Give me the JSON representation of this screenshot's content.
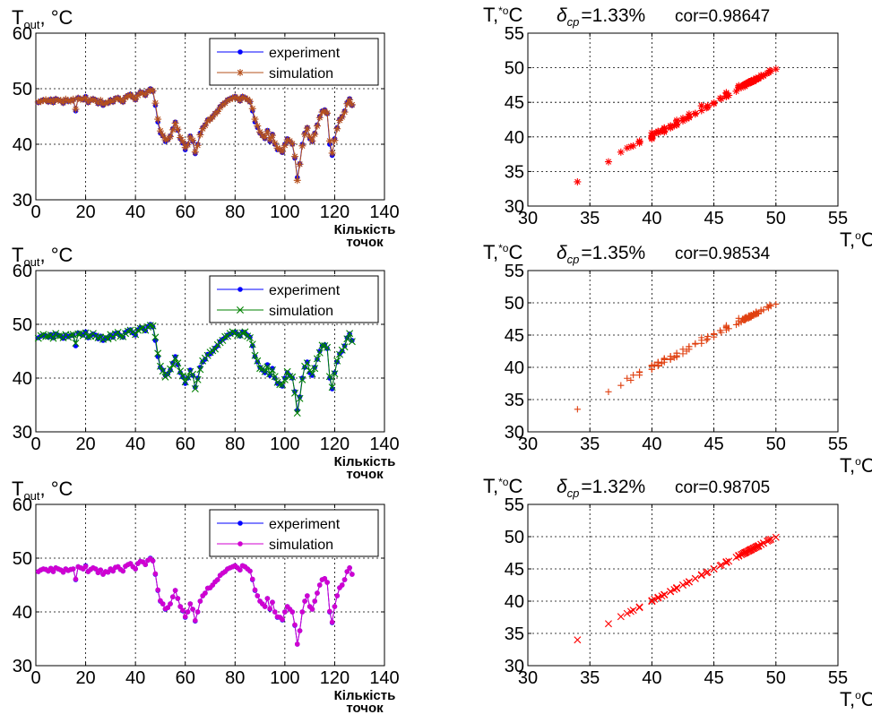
{
  "chart_data": [
    {
      "id": "p1",
      "type": "line",
      "y_label": "T",
      "y_label_sub": "out",
      "y_label_unit": ", °C",
      "x_label": [
        "Кількість",
        "точок"
      ],
      "xlim": [
        0,
        140
      ],
      "ylim": [
        30,
        60
      ],
      "xticks": [
        0,
        20,
        40,
        60,
        80,
        100,
        120,
        140
      ],
      "yticks": [
        30,
        40,
        50,
        60
      ],
      "grid": true,
      "legend_position": "top-right",
      "legend": [
        "experiment",
        "simulation"
      ],
      "series": [
        {
          "name": "experiment",
          "color": "#0000ff",
          "marker": "circle",
          "values": "experiment"
        },
        {
          "name": "simulation",
          "color": "#b5501c",
          "marker": "star",
          "values": "sim1"
        }
      ]
    },
    {
      "id": "s1",
      "type": "scatter",
      "title_prefix": "T,",
      "title_sup": "*o",
      "title_suffix": "C",
      "delta_text": "δ",
      "delta_sub": "ср",
      "delta_value": "=1.33%",
      "cor_text": "cor=0.98647",
      "x_label": "T,",
      "x_label_sup": "o",
      "x_label_unit": "C",
      "xlim": [
        30,
        55
      ],
      "ylim": [
        30,
        55
      ],
      "xticks": [
        30,
        35,
        40,
        45,
        50,
        55
      ],
      "yticks": [
        30,
        35,
        40,
        45,
        50,
        55
      ],
      "grid": true,
      "marker": "star",
      "color": "#ff0000",
      "series_pair": [
        "experiment",
        "sim1"
      ]
    },
    {
      "id": "p2",
      "type": "line",
      "y_label": "T",
      "y_label_sub": "out",
      "y_label_unit": ", °C",
      "x_label": [
        "Кількість",
        "точок"
      ],
      "xlim": [
        0,
        140
      ],
      "ylim": [
        30,
        60
      ],
      "xticks": [
        0,
        20,
        40,
        60,
        80,
        100,
        120,
        140
      ],
      "yticks": [
        30,
        40,
        50,
        60
      ],
      "grid": true,
      "legend_position": "top-right",
      "legend": [
        "experiment",
        "simulation"
      ],
      "series": [
        {
          "name": "experiment",
          "color": "#0000ff",
          "marker": "circle",
          "values": "experiment"
        },
        {
          "name": "simulation",
          "color": "#008000",
          "marker": "x",
          "values": "sim2"
        }
      ]
    },
    {
      "id": "s2",
      "type": "scatter",
      "title_prefix": "T,",
      "title_sup": "*o",
      "title_suffix": "C",
      "delta_text": "δ",
      "delta_sub": "ср",
      "delta_value": "=1.35%",
      "cor_text": "cor=0.98534",
      "x_label": "T,",
      "x_label_sup": "o",
      "x_label_unit": "C",
      "xlim": [
        30,
        55
      ],
      "ylim": [
        30,
        55
      ],
      "xticks": [
        30,
        35,
        40,
        45,
        50,
        55
      ],
      "yticks": [
        30,
        35,
        40,
        45,
        50,
        55
      ],
      "grid": true,
      "marker": "plus",
      "color": "#e04010",
      "series_pair": [
        "experiment",
        "sim2"
      ]
    },
    {
      "id": "p3",
      "type": "line",
      "y_label": "T",
      "y_label_sub": "out",
      "y_label_unit": ", °C",
      "x_label": [
        "Кількість",
        "точок"
      ],
      "xlim": [
        0,
        140
      ],
      "ylim": [
        30,
        60
      ],
      "xticks": [
        0,
        20,
        40,
        60,
        80,
        100,
        120,
        140
      ],
      "yticks": [
        30,
        40,
        50,
        60
      ],
      "grid": true,
      "legend_position": "top-right",
      "legend": [
        "experiment",
        "simulation"
      ],
      "series": [
        {
          "name": "experiment",
          "color": "#0000ff",
          "marker": "circle",
          "values": "experiment"
        },
        {
          "name": "simulation",
          "color": "#d000d0",
          "marker": "circle",
          "values": "sim3"
        }
      ]
    },
    {
      "id": "s3",
      "type": "scatter",
      "title_prefix": "T,",
      "title_sup": "*o",
      "title_suffix": "C",
      "delta_text": "δ",
      "delta_sub": "ср",
      "delta_value": "=1.32%",
      "cor_text": "cor=0.98705",
      "x_label": "T,",
      "x_label_sup": "o",
      "x_label_unit": "C",
      "xlim": [
        30,
        55
      ],
      "ylim": [
        30,
        55
      ],
      "xticks": [
        30,
        35,
        40,
        45,
        50,
        55
      ],
      "yticks": [
        30,
        35,
        40,
        45,
        50,
        55
      ],
      "grid": true,
      "marker": "x",
      "color": "#ff0000",
      "series_pair": [
        "experiment",
        "sim3"
      ]
    }
  ],
  "series_values": {
    "experiment": [
      47.5,
      47.8,
      48.0,
      47.9,
      47.6,
      48.1,
      47.5,
      48.2,
      48.0,
      47.8,
      47.4,
      48.0,
      47.7,
      47.9,
      48.0,
      46.0,
      48.4,
      48.2,
      48.0,
      48.6,
      47.5,
      47.9,
      48.2,
      48.0,
      47.3,
      47.8,
      47.0,
      47.5,
      47.4,
      48.0,
      47.6,
      48.3,
      48.4,
      47.9,
      47.6,
      48.5,
      48.8,
      49.0,
      48.4,
      48.0,
      49.0,
      49.4,
      49.3,
      48.8,
      49.6,
      50.0,
      49.5,
      47.0,
      44.0,
      42.0,
      41.5,
      40.5,
      40.8,
      41.5,
      42.8,
      44.0,
      42.5,
      41.0,
      40.2,
      39.0,
      40.0,
      41.5,
      40.5,
      38.3,
      40.0,
      42.0,
      43.0,
      43.5,
      44.4,
      44.5,
      45.0,
      45.6,
      46.0,
      46.8,
      47.2,
      47.5,
      48.0,
      48.2,
      48.4,
      48.6,
      48.2,
      47.8,
      48.6,
      48.4,
      48.0,
      47.6,
      46.0,
      44.0,
      43.0,
      42.0,
      41.5,
      41.0,
      42.5,
      40.5,
      41.8,
      40.0,
      39.0,
      39.0,
      38.5,
      40.0,
      41.0,
      40.5,
      40.0,
      37.5,
      34.0,
      36.5,
      40.0,
      42.0,
      43.0,
      41.0,
      40.5,
      42.0,
      43.5,
      45.0,
      46.0,
      46.2,
      45.5,
      40.0,
      38.0,
      41.0,
      43.0,
      44.5,
      45.0,
      46.0,
      47.5,
      48.2,
      47.0
    ],
    "sim1": [
      47.6,
      47.7,
      47.9,
      48.0,
      47.7,
      48.0,
      47.6,
      48.1,
      47.9,
      47.9,
      47.5,
      48.1,
      47.8,
      47.8,
      48.1,
      46.3,
      48.3,
      48.1,
      48.1,
      48.4,
      47.6,
      48.0,
      48.1,
      47.9,
      47.4,
      47.9,
      47.2,
      47.4,
      47.5,
      47.9,
      47.7,
      48.2,
      48.3,
      48.0,
      47.7,
      48.4,
      48.7,
      48.9,
      48.5,
      48.1,
      48.8,
      49.3,
      49.2,
      48.9,
      49.5,
      49.8,
      49.6,
      47.4,
      44.5,
      42.4,
      41.6,
      40.8,
      40.9,
      41.4,
      42.6,
      43.8,
      42.7,
      41.2,
      40.5,
      39.4,
      39.9,
      41.3,
      40.7,
      38.6,
      39.8,
      41.7,
      42.8,
      43.4,
      44.2,
      44.5,
      44.9,
      45.5,
      45.9,
      46.6,
      47.1,
      47.4,
      47.9,
      48.1,
      48.3,
      48.5,
      48.3,
      47.9,
      48.5,
      48.3,
      48.1,
      47.7,
      46.4,
      44.5,
      43.3,
      42.2,
      41.6,
      41.2,
      42.3,
      40.8,
      41.6,
      40.2,
      39.3,
      39.1,
      38.7,
      39.8,
      40.8,
      40.6,
      40.1,
      37.8,
      33.5,
      36.4,
      39.7,
      41.8,
      42.9,
      41.3,
      40.6,
      41.8,
      43.3,
      44.8,
      45.8,
      46.0,
      45.6,
      40.6,
      38.4,
      40.7,
      42.8,
      44.3,
      44.9,
      45.8,
      47.3,
      48.0,
      47.1
    ],
    "sim2": [
      47.4,
      47.9,
      48.1,
      47.7,
      47.8,
      48.0,
      47.4,
      48.3,
      47.8,
      47.9,
      47.5,
      48.1,
      47.6,
      48.0,
      48.1,
      46.5,
      48.2,
      48.3,
      47.9,
      48.4,
      47.7,
      47.8,
      48.3,
      47.8,
      47.5,
      47.6,
      47.2,
      47.6,
      47.3,
      48.1,
      47.5,
      48.2,
      48.5,
      47.8,
      47.7,
      48.3,
      48.7,
      48.9,
      48.6,
      48.1,
      48.9,
      49.2,
      49.4,
      48.9,
      49.5,
      49.8,
      49.7,
      47.6,
      44.6,
      42.2,
      41.3,
      40.2,
      40.6,
      41.7,
      42.5,
      43.7,
      42.8,
      41.3,
      40.4,
      39.3,
      40.2,
      41.2,
      40.7,
      38.0,
      39.7,
      41.6,
      43.2,
      43.7,
      44.2,
      44.8,
      45.1,
      45.4,
      46.2,
      46.6,
      47.0,
      47.7,
      47.8,
      48.3,
      48.6,
      48.4,
      48.0,
      48.0,
      48.4,
      48.6,
      47.8,
      47.5,
      46.3,
      44.2,
      43.2,
      41.8,
      41.7,
      41.2,
      42.1,
      40.8,
      41.5,
      40.3,
      39.2,
      38.8,
      38.8,
      39.7,
      41.2,
      40.3,
      40.2,
      37.2,
      33.5,
      36.2,
      39.7,
      42.2,
      42.8,
      41.4,
      40.8,
      41.8,
      43.6,
      44.7,
      46.1,
      46.0,
      45.7,
      40.3,
      38.3,
      40.8,
      43.2,
      44.4,
      45.2,
      45.8,
      47.3,
      48.3,
      46.8
    ],
    "sim3": [
      47.5,
      47.8,
      48.0,
      47.9,
      47.6,
      48.1,
      47.5,
      48.2,
      48.0,
      47.8,
      47.4,
      48.0,
      47.7,
      47.9,
      48.0,
      46.1,
      48.4,
      48.2,
      48.0,
      48.5,
      47.5,
      47.9,
      48.2,
      48.0,
      47.3,
      47.8,
      47.0,
      47.5,
      47.4,
      48.0,
      47.6,
      48.3,
      48.4,
      47.9,
      47.6,
      48.5,
      48.8,
      49.0,
      48.4,
      48.0,
      49.0,
      49.4,
      49.3,
      48.8,
      49.6,
      49.9,
      49.5,
      47.1,
      44.1,
      42.1,
      41.5,
      40.6,
      40.8,
      41.5,
      42.8,
      44.0,
      42.5,
      41.0,
      40.3,
      39.1,
      40.0,
      41.5,
      40.5,
      38.4,
      40.0,
      42.0,
      43.0,
      43.5,
      44.4,
      44.5,
      45.0,
      45.6,
      46.0,
      46.8,
      47.2,
      47.5,
      48.0,
      48.2,
      48.4,
      48.6,
      48.2,
      47.8,
      48.6,
      48.4,
      48.0,
      47.6,
      46.1,
      44.1,
      43.0,
      42.0,
      41.5,
      41.0,
      42.5,
      40.6,
      41.8,
      40.0,
      39.1,
      39.0,
      38.6,
      40.0,
      41.0,
      40.5,
      40.0,
      37.6,
      34.0,
      36.5,
      40.0,
      42.0,
      43.0,
      41.0,
      40.5,
      42.0,
      43.5,
      45.0,
      46.0,
      46.2,
      45.5,
      40.1,
      38.1,
      41.0,
      43.0,
      44.5,
      45.0,
      46.0,
      47.5,
      48.2,
      47.0
    ]
  },
  "colors": {
    "grid": "#000000",
    "axes": "#000000",
    "background": "#ffffff"
  }
}
